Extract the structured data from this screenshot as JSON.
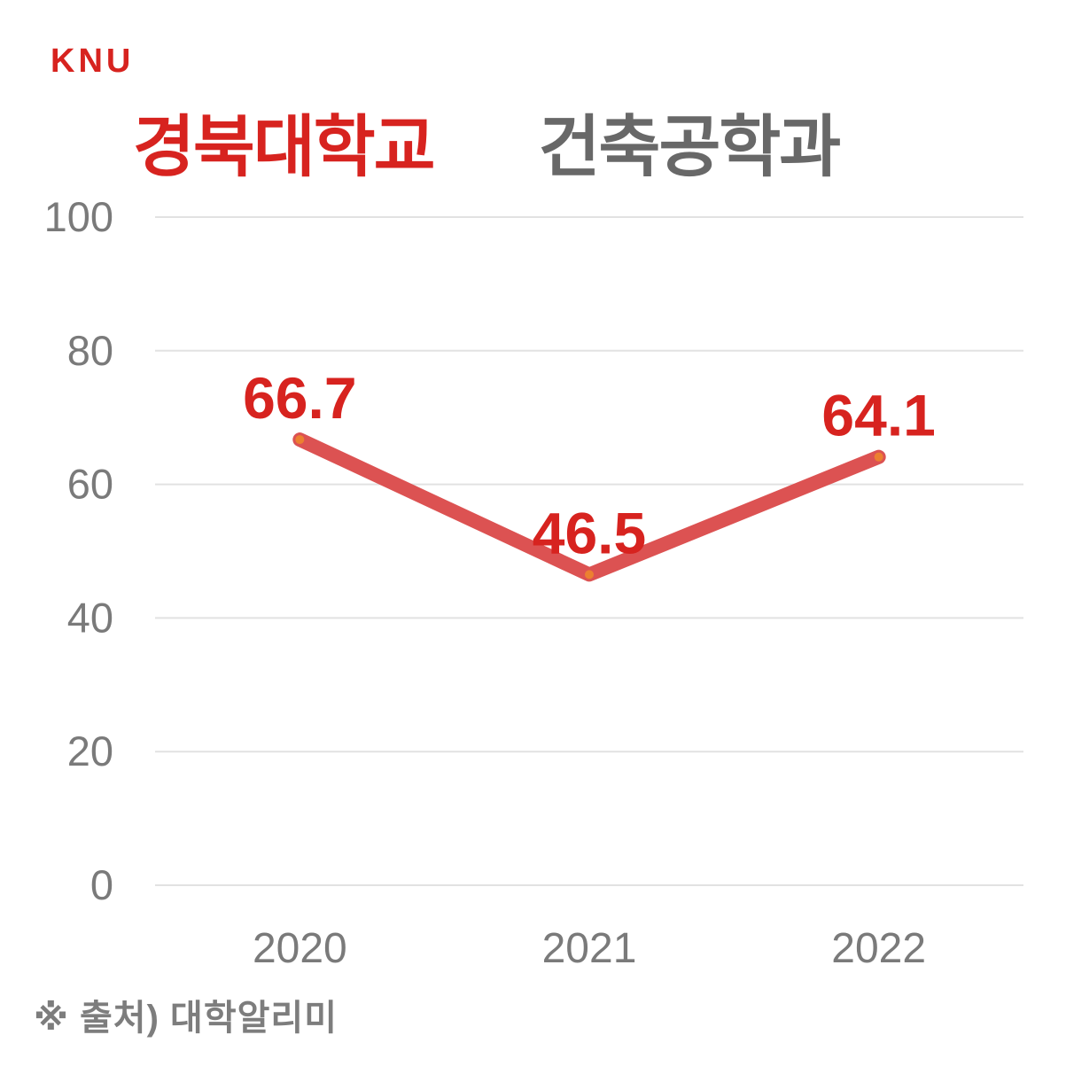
{
  "brand": {
    "logo": "KNU",
    "color": "#D7231F"
  },
  "title": {
    "university": "경북대학교",
    "department": "건축공학과",
    "university_color": "#D7231F",
    "department_color": "#686868"
  },
  "footer": {
    "source": "※ 출처) 대학알리미"
  },
  "chart_data": {
    "type": "line",
    "title": "경북대학교 건축공학과",
    "categories": [
      "2020",
      "2021",
      "2022"
    ],
    "values": [
      66.7,
      46.5,
      64.1
    ],
    "data_labels": [
      "66.7",
      "46.5",
      "64.1"
    ],
    "xlabel": "",
    "ylabel": "",
    "ylim": [
      0,
      100
    ],
    "yticks": [
      0,
      20,
      40,
      60,
      80,
      100
    ],
    "grid": true,
    "legend": false,
    "colors": {
      "line": "#DC5252",
      "marker": "#EC8030",
      "data_label": "#D7231F",
      "axis_text": "#7A7A7A",
      "gridline": "#E2E2E2"
    }
  }
}
